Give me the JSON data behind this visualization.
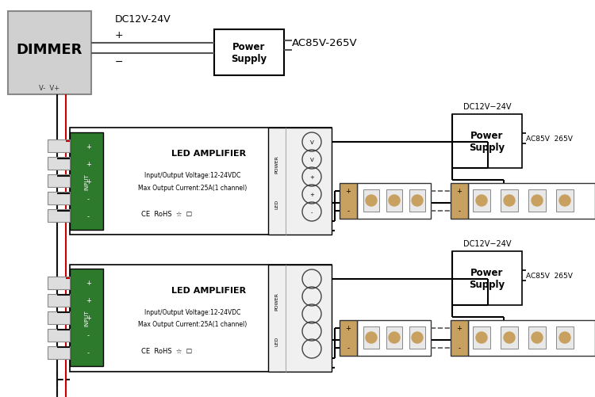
{
  "bg_color": "#ffffff",
  "dimmer_label": "DIMMER",
  "dimmer_v_label": "V-  V+",
  "top_dc_label": "DC12V-24V",
  "top_plus_label": "+",
  "top_minus_label": "−",
  "top_ac_label": "AC85V-265V",
  "psu_label": "Power\nSupply",
  "dc_label": "DC12V−24V",
  "ac_label": "AC85V  265V",
  "amp_label": "LED AMPLIFIER",
  "amp_sub1": "Input/Output Voltage:12-24VDC",
  "amp_sub2": "Max Output Current:25A(1 channel)",
  "ce_label": "CE  RoHS",
  "power_label": "POWER",
  "led_label": "LED",
  "input_label": "INPUT",
  "wire_black": "#111111",
  "wire_red": "#cc0000",
  "wire_gray": "#555555",
  "green_fill": "#2d7a2d",
  "strip_fill": "#d4820a",
  "strip_edge": "#333333",
  "led_white": "#e8e8e8",
  "connector_fill": "#c8a060"
}
